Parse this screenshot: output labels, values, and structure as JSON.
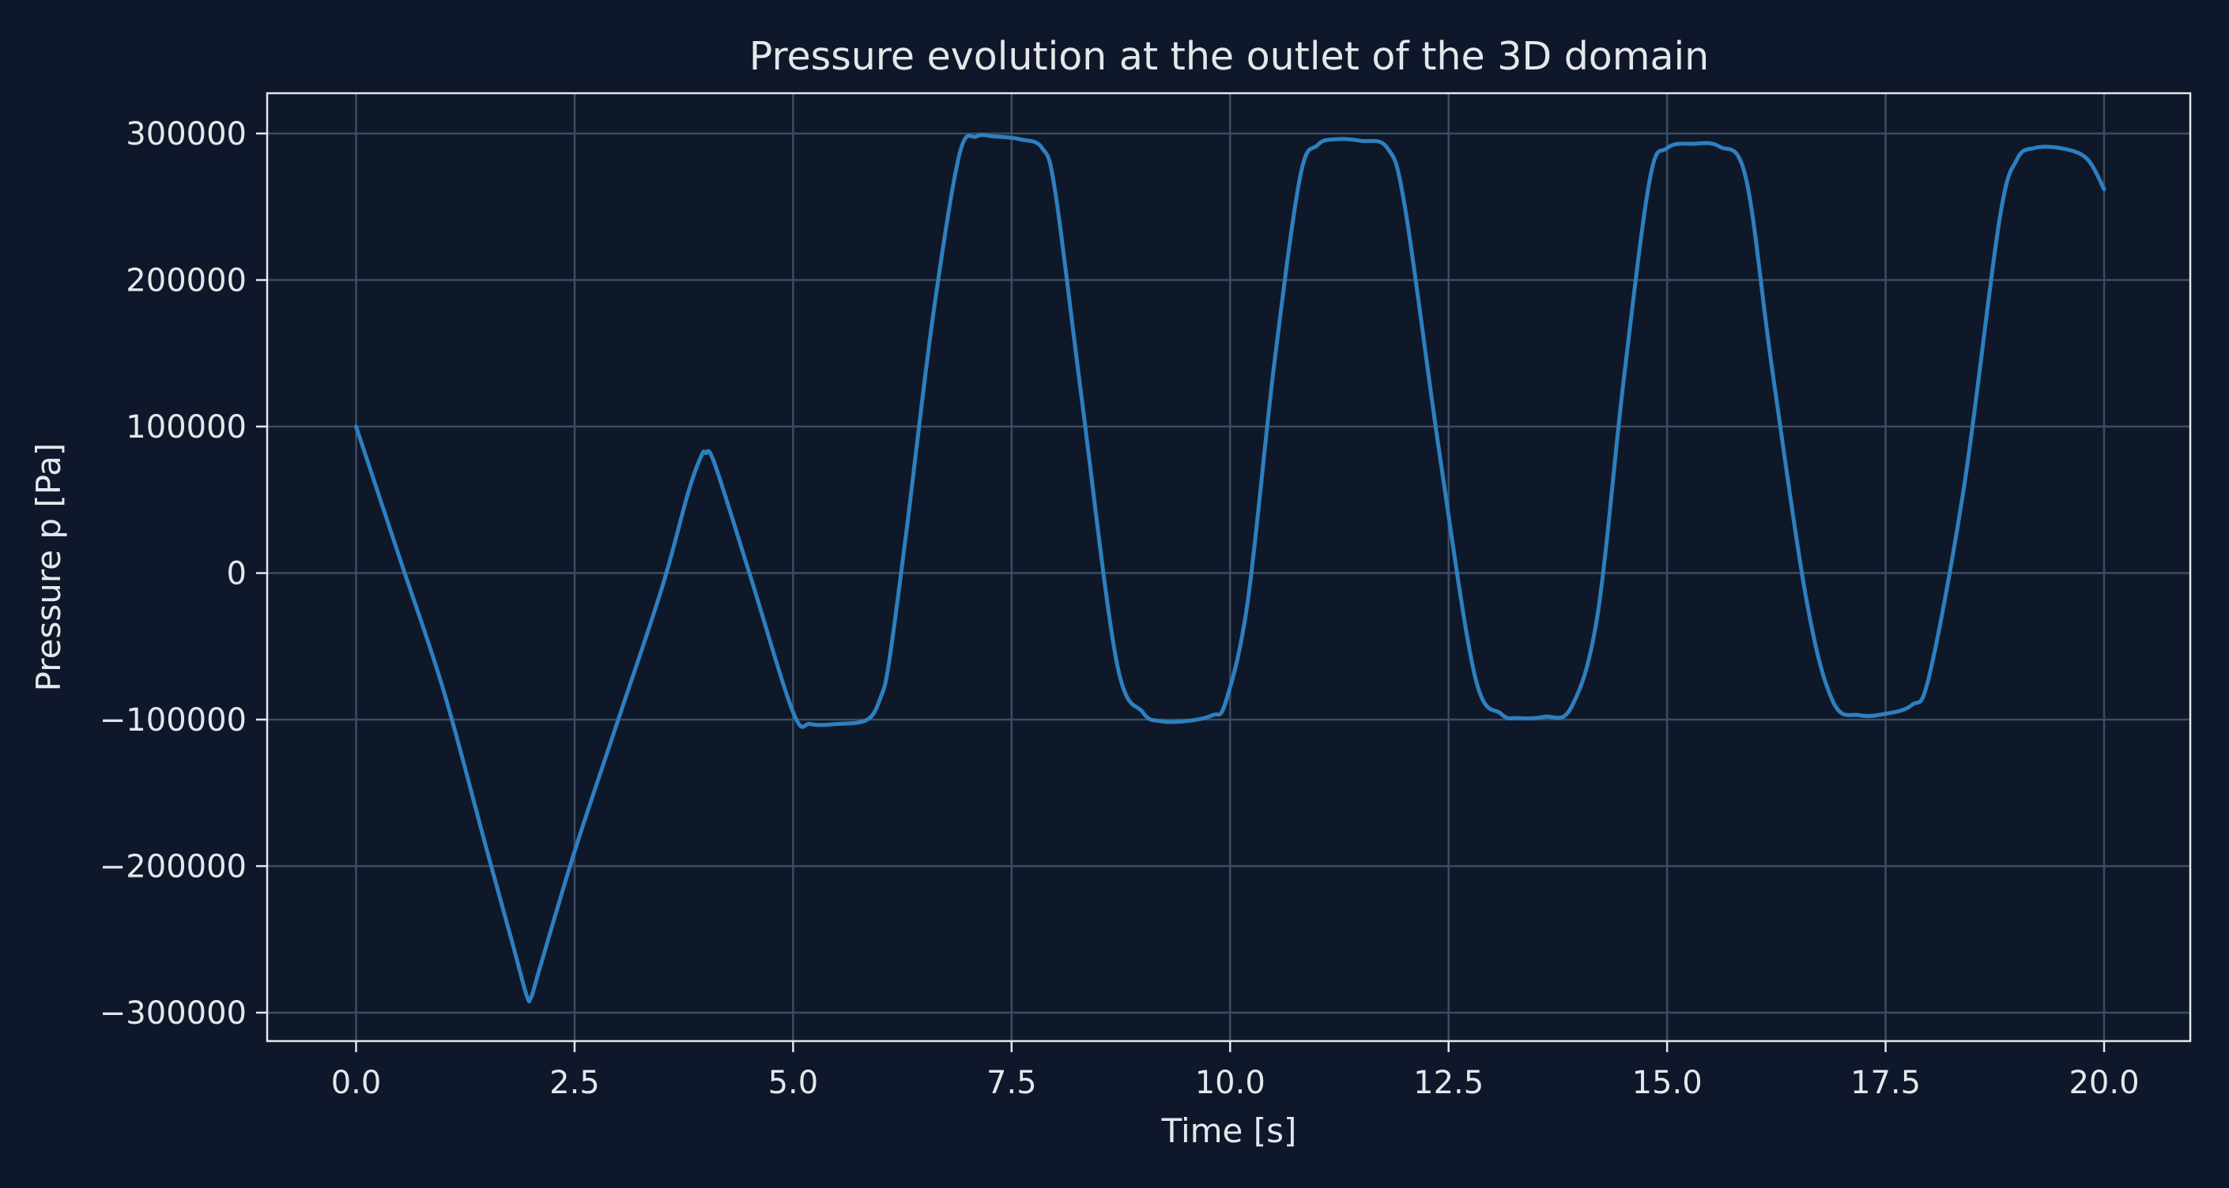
{
  "chart_data": {
    "type": "line",
    "title": "Pressure evolution at the outlet of the 3D domain",
    "xlabel": "Time [s]",
    "ylabel": "Pressure p [Pa]",
    "xlim": [
      -1.0,
      21.0
    ],
    "ylim": [
      -320000,
      328000
    ],
    "grid": true,
    "legend": null,
    "xticks": [
      0.0,
      2.5,
      5.0,
      7.5,
      10.0,
      12.5,
      15.0,
      17.5,
      20.0
    ],
    "xtick_labels": [
      "0.0",
      "2.5",
      "5.0",
      "7.5",
      "10.0",
      "12.5",
      "15.0",
      "17.5",
      "20.0"
    ],
    "yticks": [
      300000,
      200000,
      100000,
      0,
      -100000,
      -200000,
      -300000
    ],
    "ytick_labels": [
      "300000",
      "200000",
      "100000",
      "0",
      "−100000",
      "−200000",
      "−300000"
    ],
    "series": [
      {
        "name": "Pressure",
        "color": "#2e7fbf",
        "x": [
          0.0,
          0.5,
          1.0,
          1.5,
          1.8,
          1.95,
          2.0,
          2.1,
          2.5,
          3.0,
          3.5,
          3.8,
          3.95,
          4.0,
          4.1,
          4.5,
          5.0,
          5.2,
          5.5,
          5.85,
          6.0,
          6.1,
          6.3,
          6.6,
          6.9,
          7.1,
          7.3,
          7.6,
          7.85,
          8.0,
          8.3,
          8.7,
          9.0,
          9.2,
          9.5,
          9.8,
          9.95,
          10.2,
          10.5,
          10.8,
          11.0,
          11.2,
          11.5,
          11.8,
          12.0,
          12.4,
          12.8,
          13.1,
          13.3,
          13.6,
          13.9,
          14.2,
          14.5,
          14.8,
          15.0,
          15.3,
          15.6,
          15.9,
          16.2,
          16.6,
          16.9,
          17.2,
          17.5,
          17.8,
          18.0,
          18.4,
          18.8,
          19.0,
          19.2,
          19.5,
          19.8,
          20.0
        ],
        "y": [
          100000,
          10000,
          -80000,
          -190000,
          -255000,
          -288000,
          -290000,
          -270000,
          -190000,
          -100000,
          -10000,
          55000,
          80000,
          82000,
          75000,
          0,
          -95000,
          -103000,
          -103000,
          -100000,
          -85000,
          -60000,
          30000,
          175000,
          285000,
          298000,
          298000,
          296000,
          290000,
          260000,
          120000,
          -60000,
          -95000,
          -101000,
          -101000,
          -97000,
          -88000,
          -20000,
          140000,
          270000,
          292000,
          296000,
          295000,
          290000,
          250000,
          80000,
          -70000,
          -96000,
          -99000,
          -98000,
          -92000,
          -30000,
          130000,
          268000,
          290000,
          293000,
          291000,
          270000,
          140000,
          -20000,
          -88000,
          -97000,
          -96000,
          -90000,
          -70000,
          60000,
          240000,
          282000,
          290000,
          290000,
          283000,
          262000
        ]
      }
    ]
  }
}
